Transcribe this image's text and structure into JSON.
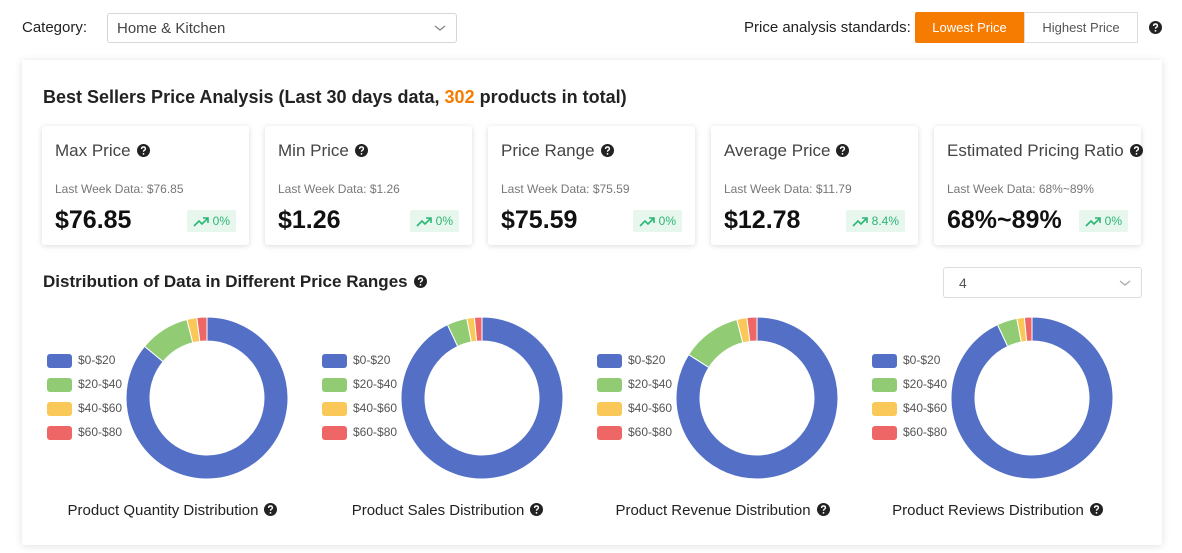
{
  "toolbar": {
    "category_label": "Category:",
    "category_value": "Home & Kitchen",
    "standards_label": "Price analysis standards:",
    "buttons": [
      "Lowest Price",
      "Highest Price"
    ]
  },
  "analysis": {
    "title_prefix": "Best Sellers Price Analysis (Last 30 days data, ",
    "product_count": 302,
    "title_suffix": " products in total)",
    "cards": [
      {
        "label": "Max Price",
        "last_week": "Last Week Data: $76.85",
        "value": "$76.85",
        "change": "0%"
      },
      {
        "label": "Min Price",
        "last_week": "Last Week Data: $1.26",
        "value": "$1.26",
        "change": "0%"
      },
      {
        "label": "Price Range",
        "last_week": "Last Week Data: $75.59",
        "value": "$75.59",
        "change": "0%"
      },
      {
        "label": "Average Price",
        "last_week": "Last Week Data: $11.79",
        "value": "$12.78",
        "change": "8.4%"
      },
      {
        "label": "Estimated Pricing Ratio",
        "last_week": "Last Week Data: 68%~89%",
        "value": "68%~89%",
        "change": "0%"
      }
    ]
  },
  "distribution": {
    "title": "Distribution of Data in Different Price Ranges",
    "ranges_select": 4
  },
  "chart_data": [
    {
      "type": "pie",
      "title": "Product Quantity Distribution",
      "categories": [
        "$0-$20",
        "$20-$40",
        "$40-$60",
        "$60-$80"
      ],
      "values": [
        86,
        10,
        2,
        2
      ],
      "colors": [
        "#5470c6",
        "#91cc75",
        "#fac858",
        "#ee6666"
      ]
    },
    {
      "type": "pie",
      "title": "Product Sales Distribution",
      "categories": [
        "$0-$20",
        "$20-$40",
        "$40-$60",
        "$60-$80"
      ],
      "values": [
        93,
        4,
        1.5,
        1.5
      ],
      "colors": [
        "#5470c6",
        "#91cc75",
        "#fac858",
        "#ee6666"
      ]
    },
    {
      "type": "pie",
      "title": "Product Revenue Distribution",
      "categories": [
        "$0-$20",
        "$20-$40",
        "$40-$60",
        "$60-$80"
      ],
      "values": [
        84,
        12,
        2,
        2
      ],
      "colors": [
        "#5470c6",
        "#91cc75",
        "#fac858",
        "#ee6666"
      ]
    },
    {
      "type": "pie",
      "title": "Product Reviews Distribution",
      "categories": [
        "$0-$20",
        "$20-$40",
        "$40-$60",
        "$60-$80"
      ],
      "values": [
        93,
        4,
        1.5,
        1.5
      ],
      "colors": [
        "#5470c6",
        "#91cc75",
        "#fac858",
        "#ee6666"
      ]
    }
  ]
}
